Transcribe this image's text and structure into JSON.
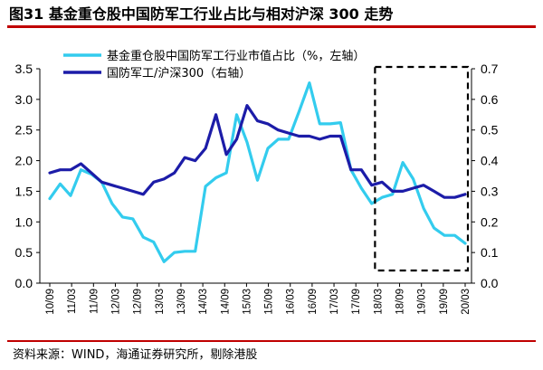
{
  "header": {
    "title": "图31 基金重仓股中国防军工行业占比与相对沪深 300 走势"
  },
  "footer": {
    "source": "资料来源：WIND，海通证券研究所，剔除港股"
  },
  "chart_data": {
    "type": "line",
    "x_labels": [
      "10/09",
      "11/03",
      "11/09",
      "12/03",
      "12/09",
      "13/03",
      "13/09",
      "14/03",
      "14/09",
      "15/03",
      "15/09",
      "16/03",
      "16/09",
      "17/03",
      "17/09",
      "18/03",
      "18/09",
      "19/03",
      "19/09",
      "20/03"
    ],
    "y_left": {
      "range": [
        0,
        3.5
      ],
      "ticks": [
        0.0,
        0.5,
        1.0,
        1.5,
        2.0,
        2.5,
        3.0,
        3.5
      ]
    },
    "y_right": {
      "range": [
        0,
        0.7
      ],
      "ticks": [
        0.0,
        0.1,
        0.2,
        0.3,
        0.4,
        0.5,
        0.6,
        0.7
      ]
    },
    "series": [
      {
        "name": "基金重仓股中国防军工行业市值占比（%，左轴）",
        "axis": "left",
        "color": "#33ccee",
        "values": [
          1.38,
          1.62,
          1.43,
          1.85,
          1.78,
          1.65,
          1.3,
          1.08,
          1.05,
          0.75,
          0.67,
          0.35,
          0.5,
          0.52,
          0.52,
          1.58,
          1.72,
          1.8,
          2.75,
          2.3,
          1.68,
          2.2,
          2.35,
          2.35,
          2.8,
          3.27,
          2.6,
          2.6,
          2.62,
          1.85,
          1.55,
          1.3,
          1.4,
          1.45,
          1.97,
          1.7,
          1.22,
          0.9,
          0.78,
          0.78,
          0.65
        ]
      },
      {
        "name": "国防军工/沪深300（右轴）",
        "axis": "right",
        "color": "#1c1ca8",
        "values": [
          0.36,
          0.37,
          0.37,
          0.39,
          0.36,
          0.33,
          0.32,
          0.31,
          0.3,
          0.29,
          0.33,
          0.34,
          0.36,
          0.41,
          0.4,
          0.44,
          0.55,
          0.42,
          0.47,
          0.58,
          0.53,
          0.52,
          0.5,
          0.49,
          0.48,
          0.48,
          0.47,
          0.48,
          0.48,
          0.37,
          0.37,
          0.32,
          0.33,
          0.3,
          0.3,
          0.31,
          0.32,
          0.3,
          0.28,
          0.28,
          0.29
        ]
      }
    ],
    "annotation": {
      "type": "dashed-box",
      "from_label": "18/03",
      "to_label": "20/03"
    },
    "grid": false,
    "legend": "top"
  }
}
